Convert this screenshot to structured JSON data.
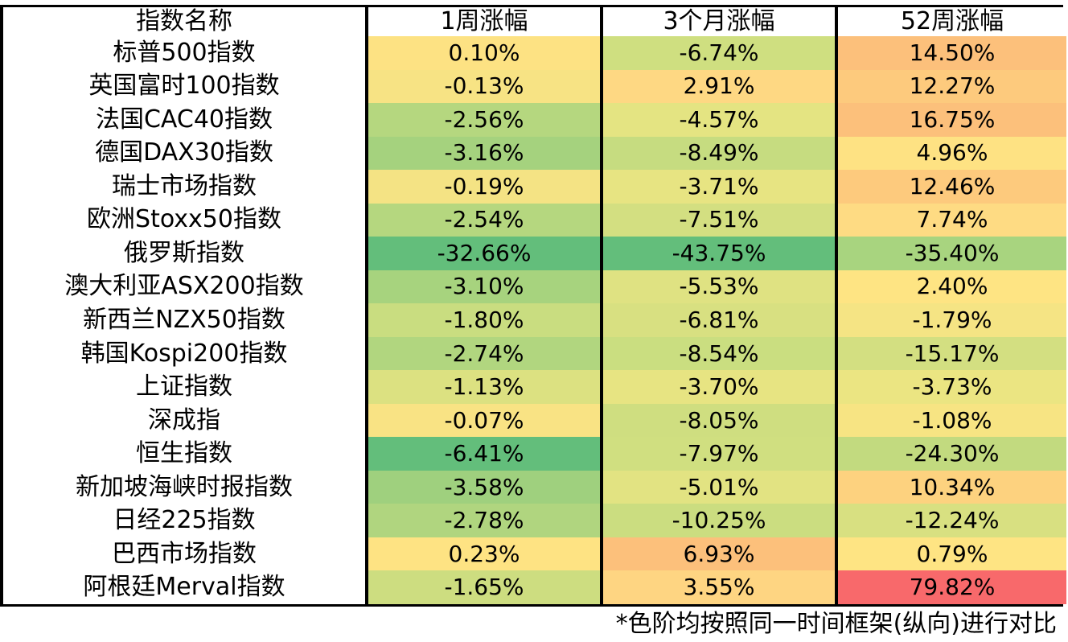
{
  "headers": [
    "指数名称",
    "1周涨幅",
    "3个月涨幅",
    "52周涨幅"
  ],
  "rows": [
    {
      "name": "标普500指数",
      "w1": "0.10%",
      "m3": "-6.74%",
      "w52": "14.50%",
      "c1": "#fde283",
      "c2": "#cfdf80",
      "c3": "#fcc07b"
    },
    {
      "name": "英国富时100指数",
      "w1": "-0.13%",
      "m3": "2.91%",
      "w52": "12.27%",
      "c1": "#f7e384",
      "c2": "#fed883",
      "c3": "#fdca7d"
    },
    {
      "name": "法国CAC40指数",
      "w1": "-2.56%",
      "m3": "-4.57%",
      "w52": "16.75%",
      "c1": "#b5d77f",
      "c2": "#e4e482",
      "c3": "#fcc07b"
    },
    {
      "name": "德国DAX30指数",
      "w1": "-3.16%",
      "m3": "-8.49%",
      "w52": "4.96%",
      "c1": "#a5d27e",
      "c2": "#c6dc80",
      "c3": "#fee283"
    },
    {
      "name": "瑞士市场指数",
      "w1": "-0.19%",
      "m3": "-3.71%",
      "w52": "12.46%",
      "c1": "#f4e384",
      "c2": "#e7e482",
      "c3": "#fdca7d"
    },
    {
      "name": "欧洲Stoxx50指数",
      "w1": "-2.54%",
      "m3": "-7.51%",
      "w52": "7.74%",
      "c1": "#b5d77f",
      "c2": "#d3df81",
      "c3": "#fedb83"
    },
    {
      "name": "俄罗斯指数",
      "w1": "-32.66%",
      "m3": "-43.75%",
      "w52": "-35.40%",
      "c1": "#63be7b",
      "c2": "#63be7b",
      "c3": "#a8d47f"
    },
    {
      "name": "澳大利亚ASX200指数",
      "w1": "-3.10%",
      "m3": "-5.53%",
      "w52": "2.40%",
      "c1": "#a7d37e",
      "c2": "#dfe282",
      "c3": "#fee483"
    },
    {
      "name": "新西兰NZX50指数",
      "w1": "-1.80%",
      "m3": "-6.81%",
      "w52": "-1.79%",
      "c1": "#c9dd80",
      "c2": "#d8e081",
      "c3": "#f5e484"
    },
    {
      "name": "韩国Kospi200指数",
      "w1": "-2.74%",
      "m3": "-8.54%",
      "w52": "-15.17%",
      "c1": "#b1d67f",
      "c2": "#cade80",
      "c3": "#d3df81"
    },
    {
      "name": "上证指数",
      "w1": "-1.13%",
      "m3": "-3.70%",
      "w52": "-3.73%",
      "c1": "#dce181",
      "c2": "#e7e482",
      "c3": "#ebe582"
    },
    {
      "name": "深成指",
      "w1": "-0.07%",
      "m3": "-8.05%",
      "w52": "-1.08%",
      "c1": "#f9e384",
      "c2": "#cfde80",
      "c3": "#f7e483"
    },
    {
      "name": "恒生指数",
      "w1": "-6.41%",
      "m3": "-7.97%",
      "w52": "-24.30%",
      "c1": "#63be7b",
      "c2": "#d0df80",
      "c3": "#c2da7f"
    },
    {
      "name": "新加坡海峡时报指数",
      "w1": "-3.58%",
      "m3": "-5.01%",
      "w52": "10.34%",
      "c1": "#9fd07e",
      "c2": "#e2e382",
      "c3": "#fdd27f"
    },
    {
      "name": "日经225指数",
      "w1": "-2.78%",
      "m3": "-10.25%",
      "w52": "-12.24%",
      "c1": "#b0d57f",
      "c2": "#cbdd80",
      "c3": "#d8e081"
    },
    {
      "name": "巴西市场指数",
      "w1": "0.23%",
      "m3": "6.93%",
      "w52": "0.79%",
      "c1": "#fee383",
      "c2": "#fcc07b",
      "c3": "#fee483"
    },
    {
      "name": "阿根廷Merval指数",
      "w1": "-1.65%",
      "m3": "3.55%",
      "w52": "79.82%",
      "c1": "#cddd80",
      "c2": "#fed582",
      "c3": "#f8696b"
    }
  ],
  "footnote": "*色阶均按照同一时间框架(纵向)进行对比"
}
